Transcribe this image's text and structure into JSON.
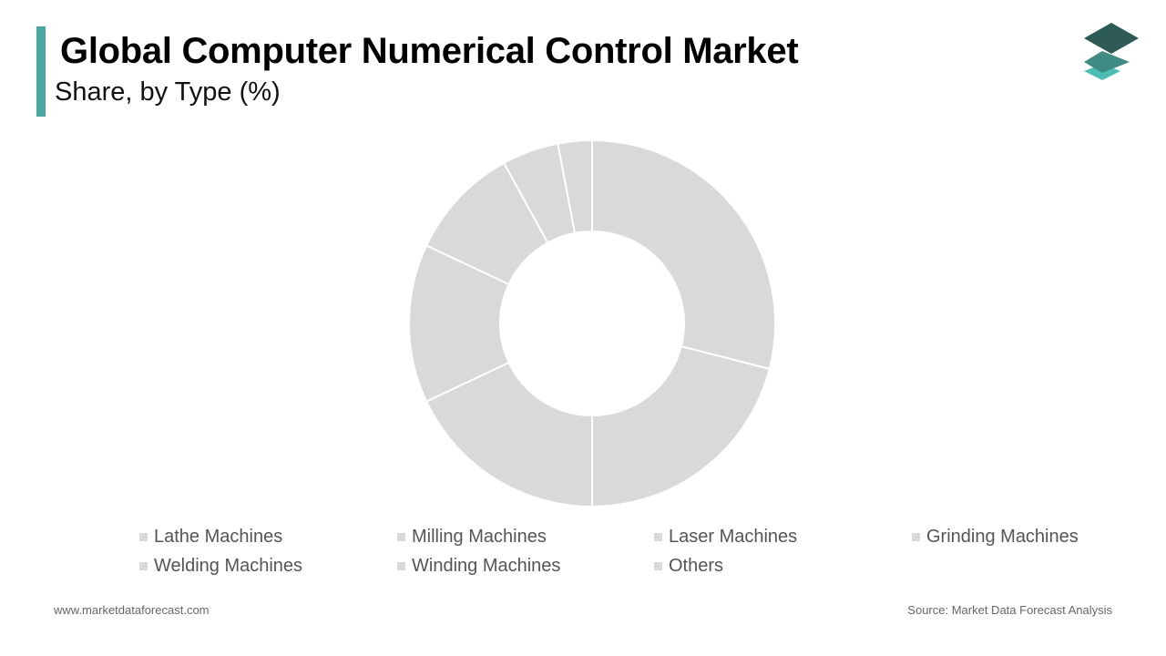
{
  "header": {
    "title": "Global Computer Numerical Control Market",
    "subtitle": "Share, by Type (%)"
  },
  "chart_data": {
    "type": "pie",
    "donut": true,
    "title": "Global Computer Numerical Control Market",
    "subtitle": "Share, by Type (%)",
    "categories": [
      "Lathe Machines",
      "Milling Machines",
      "Laser Machines",
      "Grinding Machines",
      "Welding Machines",
      "Winding Machines",
      "Others"
    ],
    "values": [
      29,
      21,
      18,
      14,
      10,
      5,
      3
    ],
    "legend_position": "bottom",
    "slice_color": "#d9d9d9",
    "slice_border_color": "#ffffff"
  },
  "legend": {
    "items": [
      "Lathe Machines",
      "Milling Machines",
      "Laser Machines",
      "Grinding Machines",
      "Welding Machines",
      "Winding Machines",
      "Others"
    ]
  },
  "footer": {
    "website": "www.marketdataforecast.com",
    "source": "Source: Market Data Forecast Analysis"
  },
  "colors": {
    "accent": "#4aa8a4",
    "logo_dark": "#2e5b55",
    "logo_mid": "#3f8a82",
    "logo_light": "#4bbdb5",
    "slice": "#d9d9d9",
    "legend_swatch": "#d9d9d9"
  },
  "icons": {
    "logo": "stacked-layers-logo-icon"
  }
}
